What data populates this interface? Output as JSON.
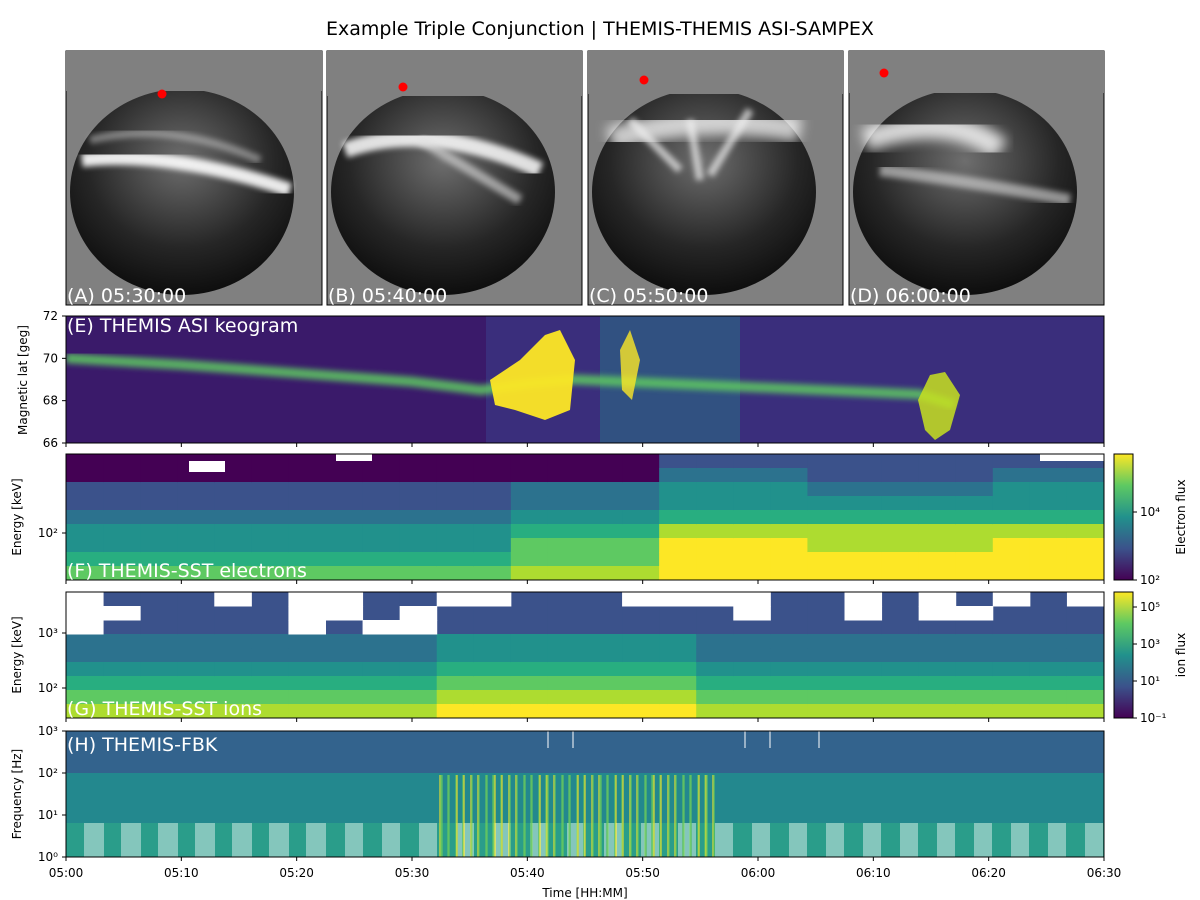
{
  "title": "Example Triple Conjunction | THEMIS-THEMIS ASI-SAMPEX",
  "colors": {
    "background_gray": "#808080",
    "footprint": "#ff0000",
    "label_text": "#ffffff"
  },
  "asi_frames": [
    {
      "label": "(A) 05:30:00"
    },
    {
      "label": "(B) 05:40:00"
    },
    {
      "label": "(C) 05:50:00"
    },
    {
      "label": "(D) 06:00:00"
    }
  ],
  "chart_data": [
    {
      "panel": "E",
      "type": "heatmap",
      "label": "(E) THEMIS ASI keogram",
      "ylabel": "Magnetic lat [geg]",
      "ylim": [
        66,
        72
      ],
      "yticks": [
        "66",
        "68",
        "70",
        "72"
      ],
      "xlim": [
        "05:00",
        "06:30"
      ],
      "colormap": "viridis",
      "features": [
        {
          "time": "05:00",
          "lat": 70.0
        },
        {
          "time": "05:10",
          "lat": 69.7
        },
        {
          "time": "05:20",
          "lat": 69.3
        },
        {
          "time": "05:30",
          "lat": 68.9
        },
        {
          "time": "05:36",
          "lat": 68.5
        },
        {
          "time": "05:40",
          "lat": 68.8
        },
        {
          "time": "05:44",
          "lat": 69.0
        },
        {
          "time": "06:14",
          "lat": 68.3
        },
        {
          "time": "06:17",
          "lat": 67.8
        }
      ]
    },
    {
      "panel": "F",
      "type": "heatmap",
      "label": "(F) THEMIS-SST electrons",
      "ylabel": "Energy [keV]",
      "yticks": [
        "10²"
      ],
      "colorbar": {
        "label": "Electron flux",
        "ticks": [
          "10²",
          "10⁴"
        ],
        "scale": "log"
      },
      "colormap": "viridis",
      "xlim": [
        "05:00",
        "06:30"
      ]
    },
    {
      "panel": "G",
      "type": "heatmap",
      "label": "(G) THEMIS-SST ions",
      "ylabel": "Energy [keV]",
      "yticks": [
        "10²",
        "10³"
      ],
      "colorbar": {
        "label": "ion flux",
        "ticks": [
          "10⁻¹",
          "10¹",
          "10³",
          "10⁵"
        ],
        "scale": "log"
      },
      "colormap": "viridis",
      "xlim": [
        "05:00",
        "06:30"
      ]
    },
    {
      "panel": "H",
      "type": "heatmap",
      "label": "(H) THEMIS-FBK",
      "ylabel": "Frequency [Hz]",
      "yticks": [
        "10⁰",
        "10¹",
        "10²",
        "10³"
      ],
      "xlabel": "Time [HH:MM]",
      "xticks": [
        "05:00",
        "05:10",
        "05:20",
        "05:30",
        "05:40",
        "05:50",
        "06:00",
        "06:10",
        "06:20",
        "06:30"
      ],
      "colormap": "viridis",
      "xlim": [
        "05:00",
        "06:30"
      ]
    }
  ]
}
